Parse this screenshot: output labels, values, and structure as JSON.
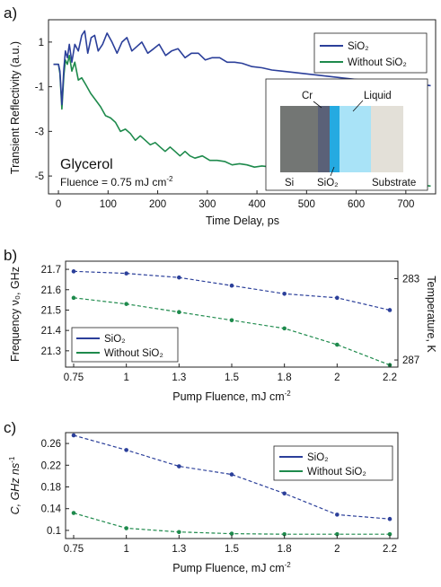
{
  "colors": {
    "blue": "#2b3f9a",
    "green": "#1e8a4c"
  },
  "chart_data": [
    {
      "panel": "a)",
      "type": "line",
      "xlabel": "Time Delay, ps",
      "ylabel": "Transient Reflectivity (a.u.)",
      "xlim": [
        -20,
        760
      ],
      "ylim": [
        -5.8,
        2.0
      ],
      "xticks": [
        0,
        100,
        200,
        300,
        400,
        500,
        600,
        700
      ],
      "yticks": [
        1,
        -1,
        -3,
        -5
      ],
      "legend": [
        "SiO₂",
        "Without SiO₂"
      ],
      "legend_position": "top-right",
      "annotation_title": "Glycerol",
      "annotation_fluence": "Fluence = 0.75 mJ cm",
      "annotation_exponent": "-2",
      "inset_labels": {
        "cr": "Cr",
        "liquid": "Liquid",
        "si": "Si",
        "sio2": "SiO₂",
        "substrate": "Substrate"
      },
      "series": [
        {
          "name": "SiO₂",
          "color": "#2b3f9a",
          "points": [
            [
              -10,
              0.0
            ],
            [
              0,
              0.0
            ],
            [
              3,
              -0.3
            ],
            [
              7,
              -1.8
            ],
            [
              11,
              -0.2
            ],
            [
              14,
              0.6
            ],
            [
              18,
              0.3
            ],
            [
              22,
              0.9
            ],
            [
              27,
              0.1
            ],
            [
              33,
              0.9
            ],
            [
              40,
              0.6
            ],
            [
              47,
              1.3
            ],
            [
              53,
              1.5
            ],
            [
              59,
              0.5
            ],
            [
              66,
              1.2
            ],
            [
              73,
              1.3
            ],
            [
              80,
              0.6
            ],
            [
              89,
              0.9
            ],
            [
              98,
              1.4
            ],
            [
              108,
              1.0
            ],
            [
              118,
              0.5
            ],
            [
              128,
              1.0
            ],
            [
              138,
              1.2
            ],
            [
              148,
              0.6
            ],
            [
              158,
              0.8
            ],
            [
              168,
              1.0
            ],
            [
              180,
              0.5
            ],
            [
              192,
              0.7
            ],
            [
              203,
              0.9
            ],
            [
              216,
              0.4
            ],
            [
              228,
              0.6
            ],
            [
              241,
              0.7
            ],
            [
              255,
              0.3
            ],
            [
              268,
              0.5
            ],
            [
              282,
              0.5
            ],
            [
              296,
              0.2
            ],
            [
              310,
              0.3
            ],
            [
              325,
              0.3
            ],
            [
              340,
              0.1
            ],
            [
              355,
              0.1
            ],
            [
              370,
              0.05
            ],
            [
              390,
              -0.1
            ],
            [
              410,
              -0.15
            ],
            [
              430,
              -0.25
            ],
            [
              450,
              -0.3
            ],
            [
              470,
              -0.35
            ],
            [
              490,
              -0.4
            ],
            [
              510,
              -0.45
            ],
            [
              530,
              -0.5
            ],
            [
              550,
              -0.55
            ],
            [
              570,
              -0.6
            ],
            [
              590,
              -0.65
            ],
            [
              610,
              -0.7
            ],
            [
              640,
              -0.75
            ],
            [
              670,
              -0.8
            ],
            [
              700,
              -0.85
            ],
            [
              730,
              -0.9
            ],
            [
              750,
              -0.95
            ]
          ]
        },
        {
          "name": "Without SiO₂",
          "color": "#1e8a4c",
          "points": [
            [
              -10,
              0.0
            ],
            [
              0,
              0.0
            ],
            [
              3,
              -0.4
            ],
            [
              7,
              -2.0
            ],
            [
              11,
              -0.5
            ],
            [
              14,
              0.2
            ],
            [
              18,
              0.0
            ],
            [
              22,
              0.4
            ],
            [
              27,
              -0.3
            ],
            [
              33,
              0.1
            ],
            [
              40,
              -0.7
            ],
            [
              47,
              -0.6
            ],
            [
              55,
              -0.9
            ],
            [
              65,
              -1.3
            ],
            [
              75,
              -1.6
            ],
            [
              85,
              -1.9
            ],
            [
              95,
              -2.3
            ],
            [
              105,
              -2.4
            ],
            [
              115,
              -2.6
            ],
            [
              125,
              -3.0
            ],
            [
              135,
              -2.9
            ],
            [
              145,
              -3.1
            ],
            [
              155,
              -3.4
            ],
            [
              165,
              -3.2
            ],
            [
              175,
              -3.4
            ],
            [
              185,
              -3.6
            ],
            [
              195,
              -3.5
            ],
            [
              205,
              -3.7
            ],
            [
              215,
              -3.9
            ],
            [
              225,
              -3.7
            ],
            [
              235,
              -3.9
            ],
            [
              245,
              -4.1
            ],
            [
              255,
              -3.9
            ],
            [
              265,
              -4.1
            ],
            [
              275,
              -4.2
            ],
            [
              290,
              -4.1
            ],
            [
              305,
              -4.3
            ],
            [
              320,
              -4.3
            ],
            [
              335,
              -4.35
            ],
            [
              350,
              -4.5
            ],
            [
              365,
              -4.45
            ],
            [
              380,
              -4.5
            ],
            [
              395,
              -4.6
            ],
            [
              410,
              -4.55
            ],
            [
              430,
              -4.6
            ],
            [
              450,
              -4.7
            ],
            [
              470,
              -4.75
            ],
            [
              490,
              -4.8
            ],
            [
              510,
              -4.85
            ],
            [
              530,
              -4.9
            ],
            [
              550,
              -4.95
            ],
            [
              570,
              -5.0
            ],
            [
              590,
              -5.05
            ],
            [
              610,
              -5.1
            ],
            [
              630,
              -5.15
            ],
            [
              650,
              -5.2
            ],
            [
              670,
              -5.25
            ],
            [
              690,
              -5.3
            ],
            [
              710,
              -5.35
            ],
            [
              730,
              -5.4
            ],
            [
              750,
              -5.45
            ]
          ]
        }
      ]
    },
    {
      "panel": "b)",
      "type": "line",
      "xlabel": "Pump Fluence, mJ cm",
      "xlabel_exponent": "-2",
      "ylabel": "Frequency ν₀, GHz",
      "ylabel_right": "Temperature, K",
      "categories": [
        "0.75",
        "1",
        "1.3",
        "1.5",
        "1.8",
        "2",
        "2.2"
      ],
      "ylim": [
        21.22,
        21.74
      ],
      "yticks": [
        21.3,
        21.4,
        21.5,
        21.6,
        21.7
      ],
      "yticks_right": [
        {
          "label": "283",
          "frequency": 21.654
        },
        {
          "label": "287",
          "frequency": 21.255
        }
      ],
      "legend": [
        "SiO₂",
        "Without SiO₂"
      ],
      "legend_position": "bottom-left",
      "series": [
        {
          "name": "SiO₂",
          "color": "#2b3f9a",
          "values": [
            21.69,
            21.68,
            21.66,
            21.62,
            21.58,
            21.56,
            21.5
          ]
        },
        {
          "name": "Without SiO₂",
          "color": "#1e8a4c",
          "values": [
            21.56,
            21.53,
            21.49,
            21.45,
            21.41,
            21.33,
            21.23
          ]
        }
      ]
    },
    {
      "panel": "c)",
      "type": "line",
      "xlabel": "Pump Fluence, mJ cm",
      "xlabel_exponent": "-2",
      "ylabel": "C, GHz ns",
      "ylabel_exponent": "-1",
      "categories": [
        "0.75",
        "1",
        "1.3",
        "1.5",
        "1.8",
        "2",
        "2.2"
      ],
      "ylim": [
        0.085,
        0.28
      ],
      "yticks": [
        0.1,
        0.14,
        0.18,
        0.22,
        0.26
      ],
      "legend": [
        "SiO₂",
        "Without SiO₂"
      ],
      "legend_position": "top-right",
      "series": [
        {
          "name": "SiO₂",
          "color": "#2b3f9a",
          "values": [
            0.275,
            0.248,
            0.218,
            0.203,
            0.168,
            0.129,
            0.121
          ]
        },
        {
          "name": "Without SiO₂",
          "color": "#1e8a4c",
          "values": [
            0.132,
            0.104,
            0.097,
            0.094,
            0.093,
            0.093,
            0.093
          ]
        }
      ]
    }
  ]
}
